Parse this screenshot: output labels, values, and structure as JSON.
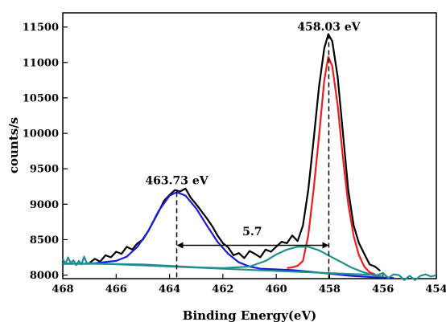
{
  "chart_data": {
    "type": "line",
    "xlabel": "Binding Energy(eV)",
    "ylabel": "counts/s",
    "xlim": [
      468,
      454
    ],
    "ylim": [
      7950,
      11700
    ],
    "x_reversed": true,
    "x_ticks": [
      468,
      466,
      464,
      462,
      460,
      458,
      456,
      454
    ],
    "y_ticks": [
      8000,
      8500,
      9000,
      9500,
      10000,
      10500,
      11000,
      11500
    ],
    "grid": false,
    "series": [
      {
        "role": "raw",
        "color": "#000000",
        "points": [
          [
            467.0,
            8170
          ],
          [
            466.8,
            8230
          ],
          [
            466.6,
            8190
          ],
          [
            466.4,
            8280
          ],
          [
            466.2,
            8250
          ],
          [
            466.0,
            8330
          ],
          [
            465.8,
            8300
          ],
          [
            465.6,
            8400
          ],
          [
            465.4,
            8360
          ],
          [
            465.2,
            8450
          ],
          [
            465.0,
            8500
          ],
          [
            464.8,
            8620
          ],
          [
            464.6,
            8760
          ],
          [
            464.4,
            8900
          ],
          [
            464.2,
            9050
          ],
          [
            464.0,
            9130
          ],
          [
            463.8,
            9200
          ],
          [
            463.6,
            9180
          ],
          [
            463.4,
            9220
          ],
          [
            463.2,
            9090
          ],
          [
            463.0,
            9000
          ],
          [
            462.8,
            8900
          ],
          [
            462.6,
            8800
          ],
          [
            462.4,
            8690
          ],
          [
            462.2,
            8560
          ],
          [
            462.0,
            8450
          ],
          [
            461.8,
            8390
          ],
          [
            461.6,
            8280
          ],
          [
            461.4,
            8310
          ],
          [
            461.2,
            8240
          ],
          [
            461.0,
            8340
          ],
          [
            460.8,
            8300
          ],
          [
            460.6,
            8250
          ],
          [
            460.4,
            8360
          ],
          [
            460.2,
            8330
          ],
          [
            460.0,
            8400
          ],
          [
            459.8,
            8470
          ],
          [
            459.6,
            8450
          ],
          [
            459.4,
            8560
          ],
          [
            459.2,
            8480
          ],
          [
            459.0,
            8700
          ],
          [
            458.8,
            9200
          ],
          [
            458.6,
            9900
          ],
          [
            458.4,
            10650
          ],
          [
            458.2,
            11200
          ],
          [
            458.05,
            11400
          ],
          [
            457.9,
            11300
          ],
          [
            457.7,
            10800
          ],
          [
            457.5,
            10000
          ],
          [
            457.3,
            9200
          ],
          [
            457.1,
            8700
          ],
          [
            456.9,
            8450
          ],
          [
            456.7,
            8300
          ],
          [
            456.5,
            8150
          ],
          [
            456.3,
            8120
          ],
          [
            456.1,
            8060
          ]
        ]
      },
      {
        "role": "fit-peak-458",
        "color": "#ee1c1c",
        "points": [
          [
            459.6,
            8100
          ],
          [
            459.4,
            8110
          ],
          [
            459.2,
            8130
          ],
          [
            459.0,
            8200
          ],
          [
            458.8,
            8560
          ],
          [
            458.6,
            9200
          ],
          [
            458.4,
            9950
          ],
          [
            458.2,
            10750
          ],
          [
            458.05,
            11080
          ],
          [
            457.9,
            10950
          ],
          [
            457.7,
            10400
          ],
          [
            457.5,
            9650
          ],
          [
            457.3,
            9000
          ],
          [
            457.1,
            8550
          ],
          [
            456.9,
            8280
          ],
          [
            456.7,
            8120
          ],
          [
            456.5,
            8040
          ],
          [
            456.3,
            8010
          ]
        ]
      },
      {
        "role": "fit-peak-463",
        "color": "#1a1adf",
        "points": [
          [
            468.0,
            8160
          ],
          [
            467.0,
            8160
          ],
          [
            466.0,
            8200
          ],
          [
            465.6,
            8260
          ],
          [
            465.2,
            8400
          ],
          [
            464.8,
            8620
          ],
          [
            464.4,
            8910
          ],
          [
            464.0,
            9120
          ],
          [
            463.73,
            9170
          ],
          [
            463.4,
            9120
          ],
          [
            463.0,
            8940
          ],
          [
            462.6,
            8700
          ],
          [
            462.2,
            8470
          ],
          [
            461.8,
            8300
          ],
          [
            461.4,
            8180
          ],
          [
            461.0,
            8120
          ],
          [
            460.6,
            8090
          ],
          [
            460.0,
            8080
          ],
          [
            459.4,
            8070
          ],
          [
            458.8,
            8050
          ],
          [
            458.0,
            8020
          ],
          [
            457.2,
            7990
          ],
          [
            456.4,
            7970
          ],
          [
            455.6,
            7960
          ]
        ]
      },
      {
        "role": "background",
        "color": "#1f8f8f",
        "points": [
          [
            468.0,
            8165
          ],
          [
            467.0,
            8160
          ],
          [
            466.0,
            8155
          ],
          [
            465.0,
            8150
          ],
          [
            464.0,
            8130
          ],
          [
            463.0,
            8110
          ],
          [
            462.0,
            8100
          ],
          [
            461.0,
            8120
          ],
          [
            460.4,
            8200
          ],
          [
            460.0,
            8290
          ],
          [
            459.6,
            8360
          ],
          [
            459.2,
            8400
          ],
          [
            458.8,
            8400
          ],
          [
            458.4,
            8350
          ],
          [
            458.0,
            8270
          ],
          [
            457.6,
            8190
          ],
          [
            457.2,
            8110
          ],
          [
            456.8,
            8050
          ],
          [
            456.4,
            8000
          ],
          [
            456.0,
            7980
          ]
        ]
      },
      {
        "role": "raw-baseline",
        "color": "#1f8f8f",
        "points": [
          [
            468.0,
            8230
          ],
          [
            467.9,
            8160
          ],
          [
            467.8,
            8250
          ],
          [
            467.7,
            8170
          ],
          [
            467.6,
            8210
          ],
          [
            467.5,
            8140
          ],
          [
            467.4,
            8200
          ],
          [
            467.3,
            8150
          ],
          [
            467.2,
            8260
          ],
          [
            467.1,
            8170
          ],
          [
            456.2,
            8000
          ],
          [
            456.0,
            8030
          ],
          [
            455.8,
            7960
          ],
          [
            455.6,
            8010
          ],
          [
            455.4,
            8000
          ],
          [
            455.2,
            7930
          ],
          [
            455.0,
            7990
          ],
          [
            454.8,
            7930
          ],
          [
            454.6,
            7990
          ],
          [
            454.4,
            8010
          ],
          [
            454.2,
            7980
          ],
          [
            454.0,
            8000
          ]
        ]
      }
    ],
    "annotations": [
      {
        "text": "458.03 eV",
        "x": 458.03,
        "y": 11450
      },
      {
        "text": "463.73 eV",
        "x": 463.73,
        "y": 9280
      },
      {
        "text": "5.7",
        "x": 460.9,
        "y": 8560
      }
    ],
    "markers": [
      {
        "kind": "vline-dashed",
        "x": 458.03,
        "y_top": 11400
      },
      {
        "kind": "vline-dashed",
        "x": 463.73,
        "y_top": 9170
      },
      {
        "kind": "double-arrow",
        "x1": 463.73,
        "x2": 458.03,
        "y": 8420
      }
    ]
  }
}
